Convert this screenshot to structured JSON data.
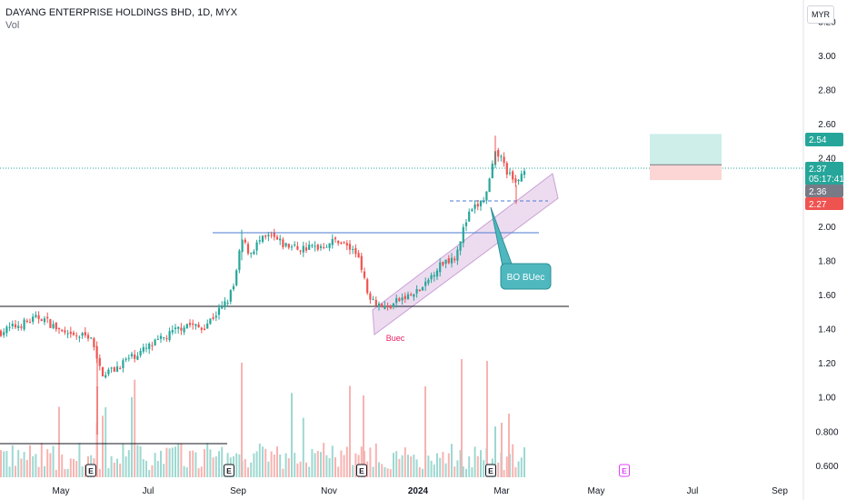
{
  "header": {
    "symbol_title": "DAYANG ENTERPRISE HOLDINGS BHD, 1D, MYX",
    "volume_label": "Vol",
    "currency": "MYR"
  },
  "chart_data": {
    "type": "candlestick",
    "y_ticks": [
      "3.20",
      "3.00",
      "2.80",
      "2.60",
      "2.40",
      "2.20",
      "2.00",
      "1.80",
      "1.60",
      "1.40",
      "1.20",
      "1.00",
      "0.800",
      "0.600"
    ],
    "y_range": [
      0.53,
      3.25
    ],
    "x_ticks": [
      "May",
      "Jul",
      "Sep",
      "Nov",
      "2024",
      "Mar",
      "May",
      "Jul",
      "Sep"
    ],
    "price_badges": {
      "take_profit": "2.54",
      "last": "2.37",
      "countdown": "05:17:41",
      "entry": "2.36",
      "stop": "2.27"
    },
    "annotations": {
      "callout": "BO BUec",
      "channel_label": "Buec"
    },
    "earnings_markers": [
      "E",
      "E",
      "E",
      "E",
      "E"
    ],
    "colors": {
      "up": "#26a69a",
      "down": "#ef5350",
      "vol_up": "#9ed8d1",
      "vol_down": "#f7b3b1",
      "channel_fill": "#eddcf0",
      "channel_edge": "#c9a0d6",
      "resistance": "#4a7bd0",
      "support": "#131722",
      "callout_fill": "#4fb8bf",
      "buec": "#e91e63"
    }
  }
}
